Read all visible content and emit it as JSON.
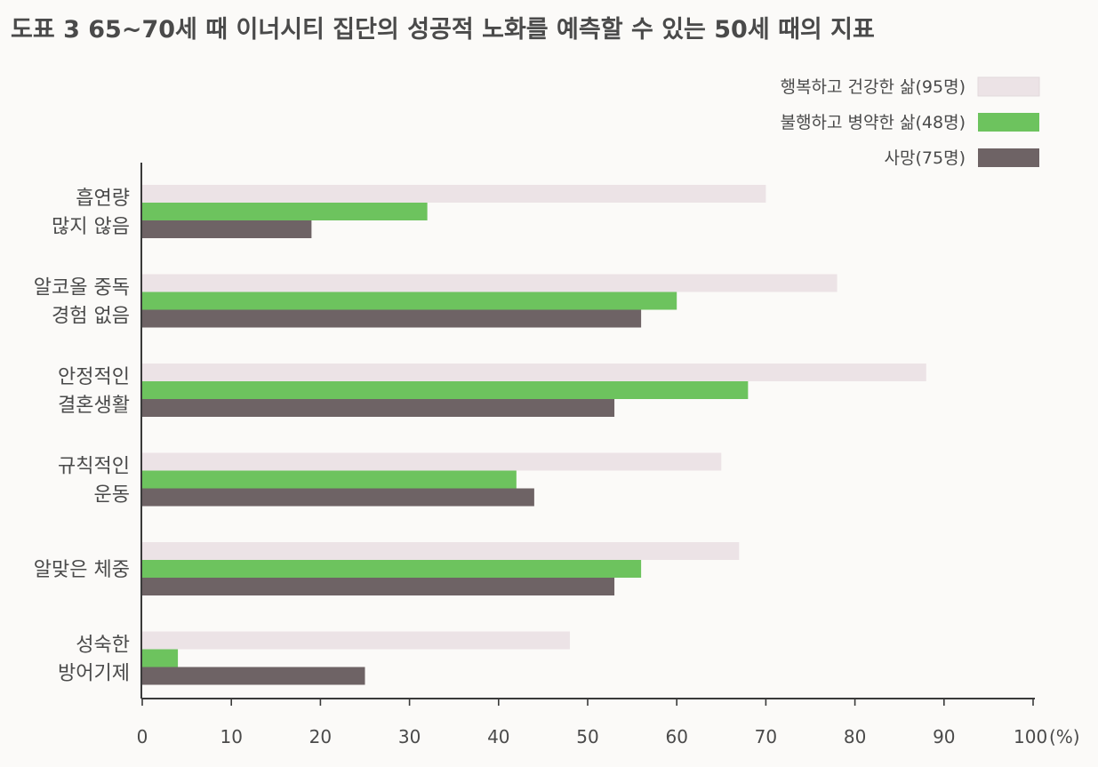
{
  "chart_data": {
    "type": "bar",
    "orientation": "horizontal",
    "title": "도표 3  65~70세 때 이너시티 집단의 성공적 노화를 예측할 수 있는 50세 때의 지표",
    "xlabel": "",
    "ylabel": "",
    "x_unit": "(%)",
    "xlim": [
      0,
      100
    ],
    "xticks": [
      "0",
      "10",
      "20",
      "30",
      "40",
      "50",
      "60",
      "70",
      "80",
      "90",
      "100"
    ],
    "grid": false,
    "legend_position": "top-right",
    "categories": [
      [
        "흡연량",
        "많지 않음"
      ],
      [
        "알코올 중독",
        "경험 없음"
      ],
      [
        "안정적인",
        "결혼생활"
      ],
      [
        "규칙적인",
        "운동"
      ],
      [
        "알맞은 체중"
      ],
      [
        "성숙한",
        "방어기제"
      ]
    ],
    "series": [
      {
        "name": "행복하고 건강한 삶(95명)",
        "color": "#ece3e6",
        "values": [
          70,
          78,
          88,
          65,
          67,
          48
        ]
      },
      {
        "name": "불행하고 병약한 삶(48명)",
        "color": "#6dc35e",
        "values": [
          32,
          60,
          68,
          42,
          56,
          4
        ]
      },
      {
        "name": "사망(75명)",
        "color": "#6e6365",
        "values": [
          19,
          56,
          53,
          44,
          53,
          25
        ]
      }
    ]
  }
}
